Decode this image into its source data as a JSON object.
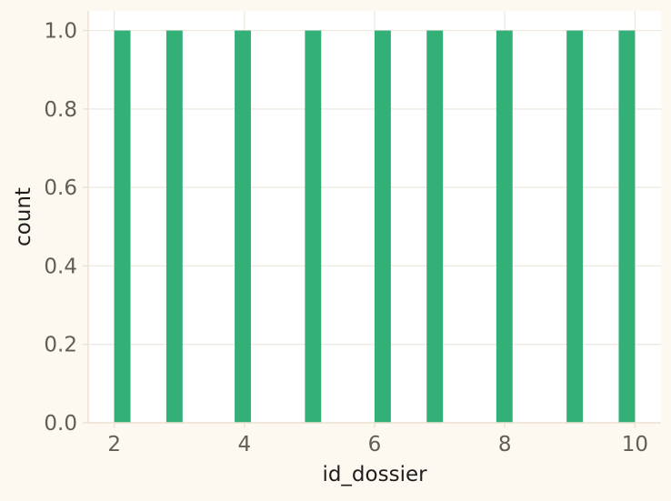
{
  "chart_data": {
    "type": "bar",
    "title": "",
    "xlabel": "id_dossier",
    "ylabel": "count",
    "bins": [
      {
        "x_start": 2.0,
        "x_end": 2.25,
        "count": 1
      },
      {
        "x_start": 2.8,
        "x_end": 3.05,
        "count": 1
      },
      {
        "x_start": 3.85,
        "x_end": 4.1,
        "count": 1
      },
      {
        "x_start": 4.93,
        "x_end": 5.18,
        "count": 1
      },
      {
        "x_start": 6.0,
        "x_end": 6.25,
        "count": 1
      },
      {
        "x_start": 6.8,
        "x_end": 7.05,
        "count": 1
      },
      {
        "x_start": 7.87,
        "x_end": 8.12,
        "count": 1
      },
      {
        "x_start": 8.95,
        "x_end": 9.2,
        "count": 1
      },
      {
        "x_start": 9.75,
        "x_end": 10.0,
        "count": 1
      }
    ],
    "xlim": [
      1.6,
      10.4
    ],
    "ylim": [
      0,
      1.05
    ],
    "xticks": [
      2,
      4,
      6,
      8,
      10
    ],
    "xtick_labels": [
      "2",
      "4",
      "6",
      "8",
      "10"
    ],
    "yticks": [
      0,
      0.2,
      0.4,
      0.6,
      0.8,
      1.0
    ],
    "ytick_labels": [
      "0.0",
      "0.2",
      "0.4",
      "0.6",
      "0.8",
      "1.0"
    ],
    "grid": true,
    "legend": "none",
    "colors": {
      "bar": "#33b078",
      "page_background": "#fdf8f0",
      "plot_background": "#ffffff",
      "grid": "#ede7dd",
      "axis_line": "#ede2d0",
      "tick_text": "#625e55",
      "label_text": "#1e1e1e"
    }
  }
}
